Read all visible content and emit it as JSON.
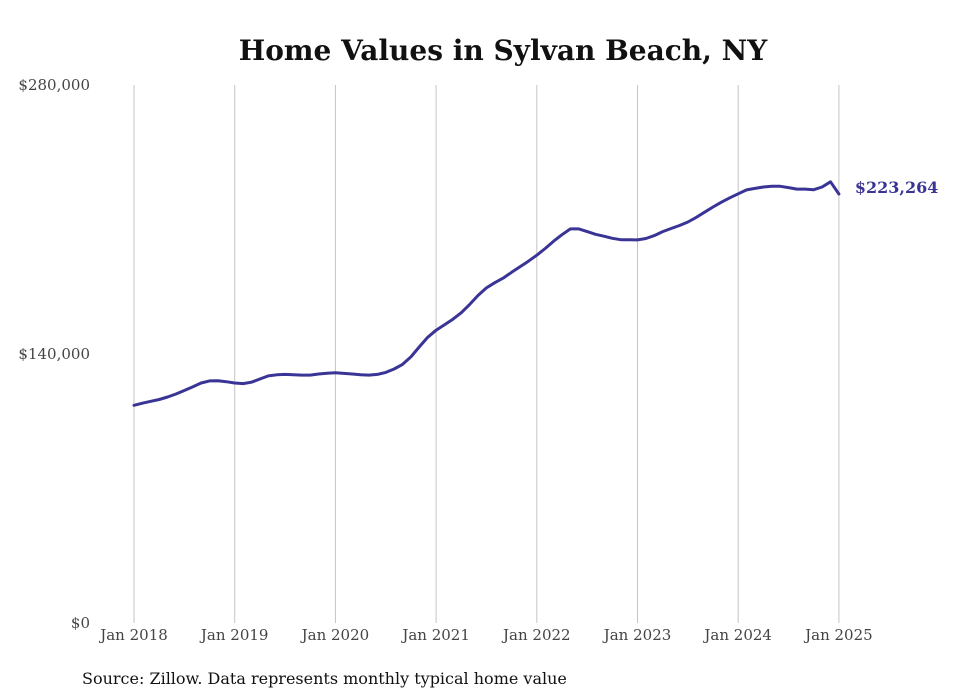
{
  "chart_data": {
    "type": "line",
    "title": "Home Values in Sylvan Beach, NY",
    "source": "Source: Zillow. Data represents monthly typical home value",
    "y_tick_labels": [
      "$280,000",
      "$140,000",
      "$0"
    ],
    "y_ticks": [
      280000,
      140000,
      0
    ],
    "ylim": [
      0,
      280000
    ],
    "x_tick_labels": [
      "Jan 2018",
      "Jan 2019",
      "Jan 2020",
      "Jan 2021",
      "Jan 2022",
      "Jan 2023",
      "Jan 2024",
      "Jan 2025"
    ],
    "x_ticks": [
      2018,
      2019,
      2020,
      2021,
      2022,
      2023,
      2024,
      2025
    ],
    "xlim_months": [
      "Jan 2018",
      "May 2025"
    ],
    "grid": "vertical",
    "line_color": "#3a3496",
    "end_label": "$223,264",
    "series": [
      {
        "values": [
          113300,
          114400,
          115400,
          116300,
          117600,
          119200,
          121000,
          122900,
          124900,
          126000,
          126100,
          125600,
          124900,
          124600,
          125300,
          127000,
          128600,
          129200,
          129400,
          129200,
          129000,
          129000,
          129600,
          130000,
          130200,
          129900,
          129600,
          129200,
          129000,
          129400,
          130400,
          132200,
          134600,
          138500,
          143700,
          148700,
          152400,
          155200,
          158100,
          161500,
          165800,
          170500,
          174400,
          177100,
          179500,
          182500,
          185400,
          188300,
          191400,
          194900,
          198700,
          202100,
          205100,
          205100,
          203700,
          202300,
          201300,
          200200,
          199500,
          199500,
          199400,
          200100,
          201600,
          203700,
          205300,
          206900,
          208700,
          211100,
          213800,
          216500,
          219000,
          221300,
          223400,
          225400,
          226200,
          226900,
          227300,
          227300,
          226600,
          225800,
          225800,
          225500,
          226900,
          229600,
          223264
        ]
      }
    ]
  }
}
